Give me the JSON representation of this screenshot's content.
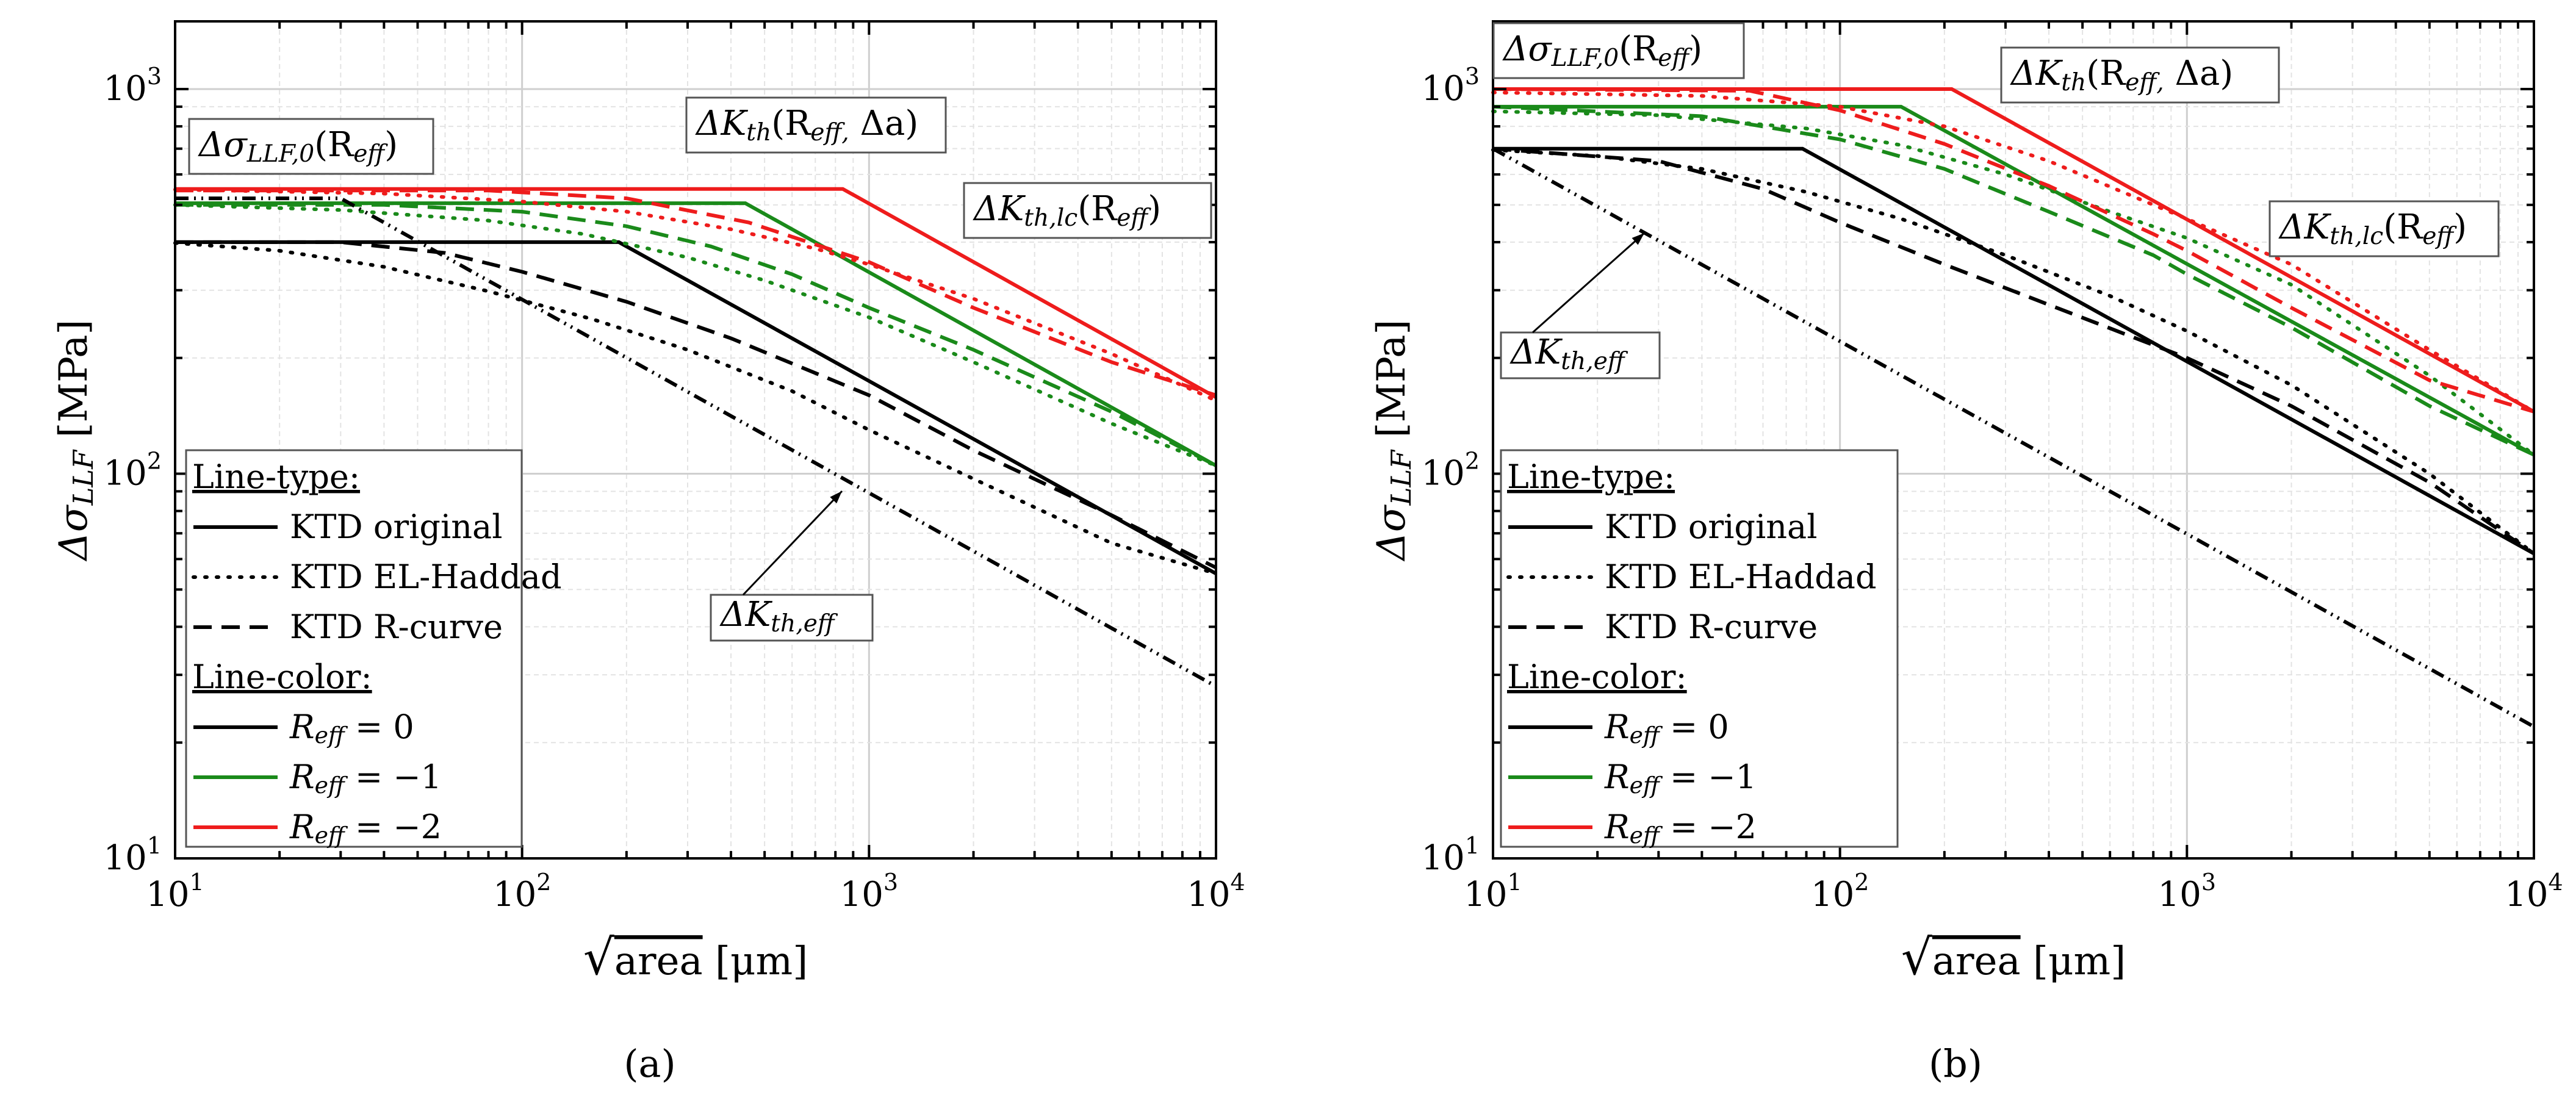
{
  "panel_labels": [
    "(a)",
    "(b)"
  ],
  "chart_data": [
    {
      "panel": "(a)",
      "type": "line",
      "x_scale": "log",
      "y_scale": "log",
      "xlim": [
        10,
        10000
      ],
      "ylim": [
        10,
        1500
      ],
      "xticks": [
        10,
        100,
        1000,
        10000
      ],
      "yticks": [
        10,
        100,
        1000
      ],
      "xlabel": "√area [μm]",
      "ylabel": "Δσ_LLF [MPa]",
      "grid": true,
      "colors": {
        "R0": "#000000",
        "R-1": "#1a8a1a",
        "R-2": "#ee1c1c"
      },
      "series": [
        {
          "color": "R0",
          "dash": "solid",
          "x": [
            10,
            190,
            10000
          ],
          "y": [
            400,
            400,
            55
          ]
        },
        {
          "color": "R-1",
          "dash": "solid",
          "x": [
            10,
            440,
            10000
          ],
          "y": [
            505,
            505,
            105
          ]
        },
        {
          "color": "R-2",
          "dash": "solid",
          "x": [
            10,
            840,
            10000
          ],
          "y": [
            550,
            550,
            158
          ]
        },
        {
          "color": "R0",
          "dash": "dot",
          "x": [
            10,
            20,
            40,
            80,
            160,
            300,
            600,
            1000,
            2000,
            5000,
            10000
          ],
          "y": [
            398,
            380,
            345,
            298,
            252,
            210,
            164,
            130,
            97,
            66,
            55
          ]
        },
        {
          "color": "R-1",
          "dash": "dot",
          "x": [
            10,
            30,
            80,
            150,
            300,
            500,
            1000,
            2000,
            5000,
            10000
          ],
          "y": [
            500,
            485,
            455,
            420,
            365,
            318,
            255,
            195,
            135,
            105
          ]
        },
        {
          "color": "R-2",
          "dash": "dot",
          "x": [
            10,
            40,
            100,
            200,
            400,
            700,
            1000,
            2000,
            5000,
            10000
          ],
          "y": [
            548,
            535,
            510,
            480,
            432,
            385,
            350,
            285,
            205,
            155
          ]
        },
        {
          "color": "R0",
          "dash": "dash",
          "x": [
            10,
            30,
            60,
            100,
            200,
            400,
            1000,
            2000,
            5000,
            10000
          ],
          "y": [
            400,
            400,
            375,
            335,
            280,
            225,
            160,
            115,
            78,
            57
          ]
        },
        {
          "color": "R-1",
          "dash": "dash",
          "x": [
            10,
            40,
            100,
            200,
            350,
            600,
            1000,
            2000,
            5000,
            10000
          ],
          "y": [
            500,
            500,
            480,
            440,
            390,
            330,
            270,
            210,
            145,
            105
          ]
        },
        {
          "color": "R-2",
          "dash": "dash",
          "x": [
            10,
            80,
            200,
            450,
            1000,
            2000,
            5000,
            10000
          ],
          "y": [
            545,
            545,
            520,
            450,
            355,
            270,
            195,
            160
          ]
        },
        {
          "color": "R0",
          "dash": "dashdotdot",
          "x": [
            10,
            30,
            10000
          ],
          "y": [
            520,
            520,
            28
          ]
        }
      ],
      "annotations": [
        {
          "text": "Δσ_LLF,0(R_eff)"
        },
        {
          "text": "ΔK_th(R_eff, Δa)"
        },
        {
          "text": "ΔK_th,lc(R_eff)"
        },
        {
          "text": "ΔK_th,eff"
        }
      ],
      "legend": {
        "placement": "bottom-left",
        "line_type_title": "Line-type:",
        "line_types": [
          {
            "dash": "solid",
            "label": "KTD original"
          },
          {
            "dash": "dot",
            "label": "KTD EL-Haddad"
          },
          {
            "dash": "dash",
            "label": "KTD R-curve"
          }
        ],
        "line_color_title": "Line-color:",
        "line_colors": [
          {
            "color": "R0",
            "label": "R_eff = 0"
          },
          {
            "color": "R-1",
            "label": "R_eff = −1"
          },
          {
            "color": "R-2",
            "label": "R_eff = −2"
          }
        ]
      }
    },
    {
      "panel": "(b)",
      "type": "line",
      "x_scale": "log",
      "y_scale": "log",
      "xlim": [
        10,
        10000
      ],
      "ylim": [
        10,
        1500
      ],
      "xticks": [
        10,
        100,
        1000,
        10000
      ],
      "yticks": [
        10,
        100,
        1000
      ],
      "xlabel": "√area [μm]",
      "ylabel": "Δσ_LLF [MPa]",
      "grid": true,
      "colors": {
        "R0": "#000000",
        "R-1": "#1a8a1a",
        "R-2": "#ee1c1c"
      },
      "series": [
        {
          "color": "R0",
          "dash": "solid",
          "x": [
            10,
            78,
            10000
          ],
          "y": [
            700,
            700,
            62
          ]
        },
        {
          "color": "R-1",
          "dash": "solid",
          "x": [
            10,
            150,
            10000
          ],
          "y": [
            900,
            900,
            112
          ]
        },
        {
          "color": "R-2",
          "dash": "solid",
          "x": [
            10,
            210,
            10000
          ],
          "y": [
            1000,
            1000,
            145
          ]
        },
        {
          "color": "R0",
          "dash": "dot",
          "x": [
            10,
            20,
            40,
            80,
            150,
            300,
            600,
            1000,
            2000,
            5000,
            10000
          ],
          "y": [
            695,
            670,
            620,
            540,
            460,
            370,
            290,
            235,
            170,
            100,
            62
          ]
        },
        {
          "color": "R-1",
          "dash": "dot",
          "x": [
            10,
            30,
            80,
            150,
            300,
            600,
            1000,
            2000,
            5000,
            10000
          ],
          "y": [
            875,
            855,
            790,
            715,
            600,
            480,
            410,
            310,
            180,
            112
          ]
        },
        {
          "color": "R-2",
          "dash": "dot",
          "x": [
            10,
            40,
            100,
            200,
            400,
            800,
            1000,
            2000,
            5000,
            10000
          ],
          "y": [
            980,
            960,
            900,
            800,
            650,
            500,
            460,
            350,
            210,
            145
          ]
        },
        {
          "color": "R0",
          "dash": "dash",
          "x": [
            10,
            30,
            60,
            100,
            200,
            400,
            1000,
            2000,
            5000,
            10000
          ],
          "y": [
            700,
            650,
            550,
            450,
            350,
            275,
            200,
            150,
            95,
            62
          ]
        },
        {
          "color": "R-1",
          "dash": "dash",
          "x": [
            10,
            40,
            100,
            200,
            400,
            800,
            1000,
            2000,
            5000,
            10000
          ],
          "y": [
            900,
            850,
            740,
            620,
            480,
            370,
            330,
            240,
            150,
            112
          ]
        },
        {
          "color": "R-2",
          "dash": "dash",
          "x": [
            10,
            55,
            100,
            200,
            400,
            800,
            1000,
            2000,
            5000,
            10000
          ],
          "y": [
            1000,
            990,
            880,
            720,
            560,
            420,
            380,
            270,
            175,
            145
          ]
        },
        {
          "color": "R0",
          "dash": "dashdotdot",
          "x": [
            10,
            10000
          ],
          "y": [
            700,
            22
          ]
        }
      ],
      "annotations": [
        {
          "text": "Δσ_LLF,0(R_eff)"
        },
        {
          "text": "ΔK_th(R_eff, Δa)"
        },
        {
          "text": "ΔK_th,lc(R_eff)"
        },
        {
          "text": "ΔK_th,eff"
        }
      ],
      "legend": {
        "placement": "bottom-left",
        "line_type_title": "Line-type:",
        "line_types": [
          {
            "dash": "solid",
            "label": "KTD original"
          },
          {
            "dash": "dot",
            "label": "KTD EL-Haddad"
          },
          {
            "dash": "dash",
            "label": "KTD R-curve"
          }
        ],
        "line_color_title": "Line-color:",
        "line_colors": [
          {
            "color": "R0",
            "label": "R_eff = 0"
          },
          {
            "color": "R-1",
            "label": "R_eff = −1"
          },
          {
            "color": "R-2",
            "label": "R_eff = −2"
          }
        ]
      }
    }
  ]
}
